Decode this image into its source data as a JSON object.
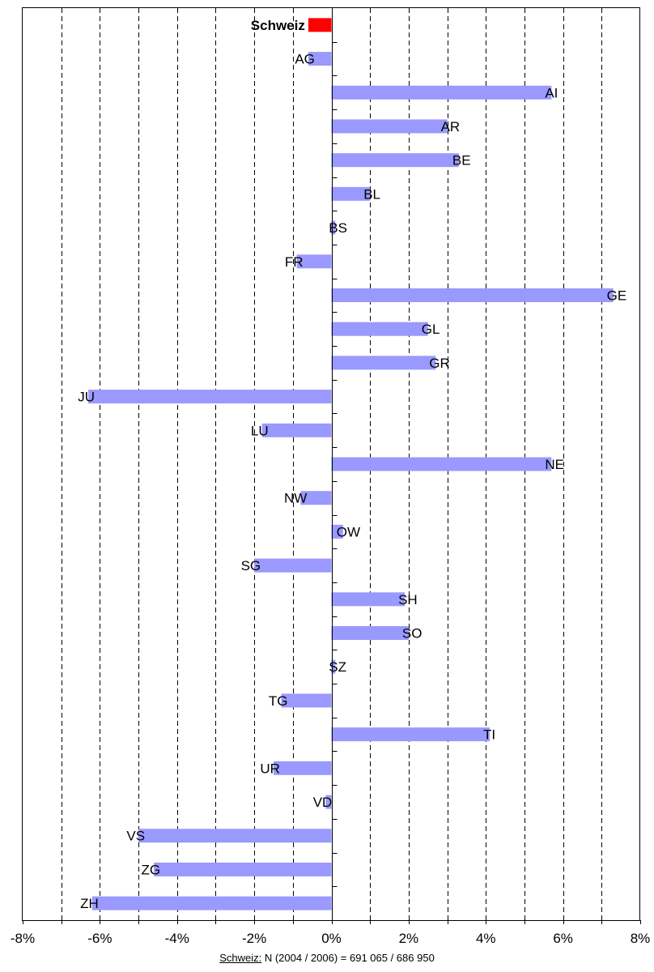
{
  "chart_data": {
    "type": "bar",
    "orientation": "horizontal",
    "categories": [
      "Schweiz",
      "AG",
      "AI",
      "AR",
      "BE",
      "BL",
      "BS",
      "FR",
      "GE",
      "GL",
      "GR",
      "JU",
      "LU",
      "NE",
      "NW",
      "OW",
      "SG",
      "SH",
      "SO",
      "SZ",
      "TG",
      "TI",
      "UR",
      "VD",
      "VS",
      "ZG",
      "ZH"
    ],
    "values": [
      -0.6,
      -0.6,
      5.7,
      3.0,
      3.3,
      1.0,
      0.1,
      -0.9,
      7.3,
      2.5,
      2.7,
      -6.3,
      -1.8,
      5.7,
      -0.8,
      0.3,
      -2.0,
      1.9,
      2.0,
      0.1,
      -1.3,
      4.1,
      -1.5,
      -0.15,
      -5.0,
      -4.6,
      -6.2
    ],
    "xlim": [
      -8,
      8
    ],
    "xticks": [
      -8,
      -6,
      -4,
      -2,
      0,
      2,
      4,
      6,
      8
    ],
    "xtick_labels": [
      "-8%",
      "-6%",
      "-4%",
      "-2%",
      "0%",
      "2%",
      "4%",
      "6%",
      "8%"
    ],
    "minor_grid_step": 1,
    "grid": "vertical dashed",
    "highlight_category": "Schweiz",
    "colors": {
      "bar": "#9999ff",
      "highlight": "#ff0000",
      "axis": "#000000",
      "grid": "#000000"
    }
  },
  "footnote": {
    "label": "Schweiz:",
    "text": " N (2004 / 2006) = 691 065 / 686 950"
  }
}
